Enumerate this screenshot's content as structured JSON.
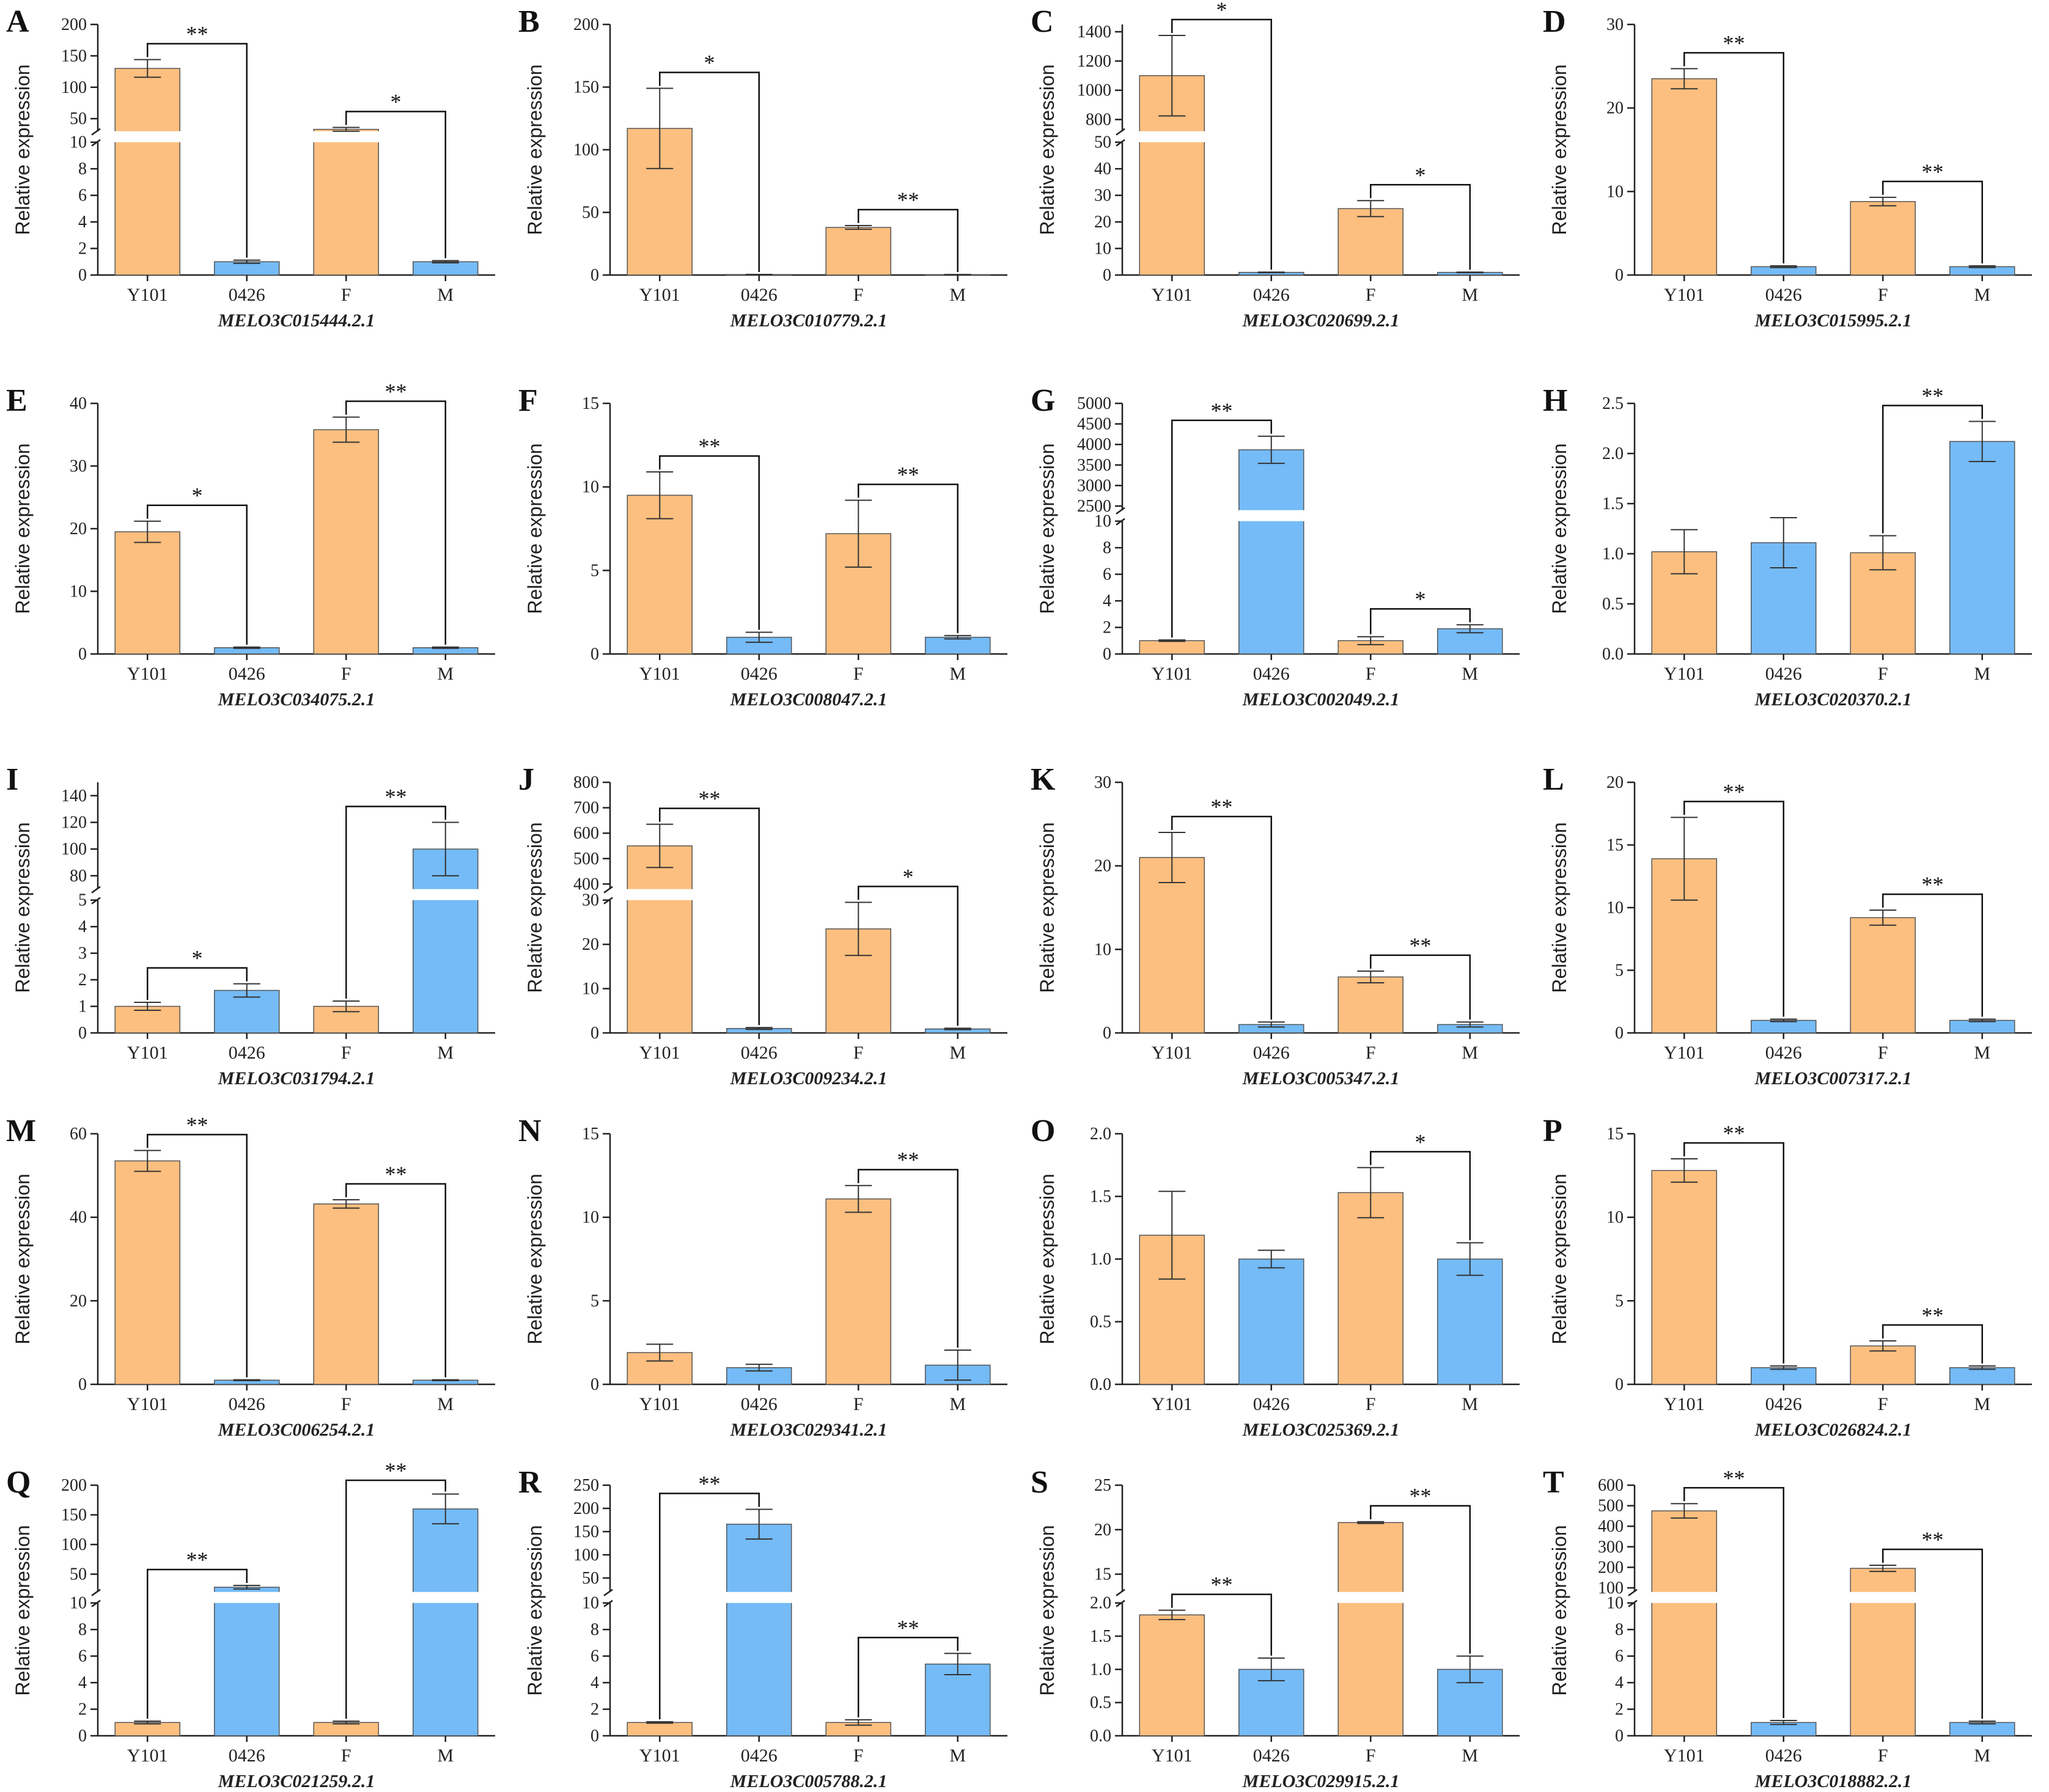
{
  "colors": {
    "orange": "#FDBF7F",
    "blue": "#74BBF7",
    "outline": "#555555",
    "axis": "#222222"
  },
  "chart_data": [
    {
      "type": "bar",
      "letter": "A",
      "gene": "MELO3C015444.2.1",
      "ylabel": "Relative expression",
      "categories": [
        "Y101",
        "0426",
        "F",
        "M"
      ],
      "values": [
        130,
        1.0,
        33,
        1.0
      ],
      "errors": [
        14,
        0.12,
        3,
        0.08
      ],
      "axis": {
        "broken": true,
        "low_max": 10,
        "low_ticks": [
          "0",
          "2",
          "4",
          "6",
          "8",
          "10"
        ],
        "high_min": 30,
        "high_max": 200,
        "high_ticks": [
          "50",
          "100",
          "150",
          "200"
        ]
      },
      "sig": [
        {
          "from": 0,
          "to": 1,
          "label": "**"
        },
        {
          "from": 2,
          "to": 3,
          "label": "*"
        }
      ]
    },
    {
      "type": "bar",
      "letter": "B",
      "gene": "MELO3C010779.2.1",
      "ylabel": "Relative expression",
      "categories": [
        "Y101",
        "0426",
        "F",
        "M"
      ],
      "values": [
        117,
        0.4,
        38,
        0.3
      ],
      "errors": [
        32,
        0.1,
        1.5,
        0.1
      ],
      "axis": {
        "broken": false,
        "max": 200,
        "ticks": [
          "0",
          "50",
          "100",
          "150",
          "200"
        ]
      },
      "sig": [
        {
          "from": 0,
          "to": 1,
          "label": "*"
        },
        {
          "from": 2,
          "to": 3,
          "label": "**"
        }
      ]
    },
    {
      "type": "bar",
      "letter": "C",
      "gene": "MELO3C020699.2.1",
      "ylabel": "Relative expression",
      "categories": [
        "Y101",
        "0426",
        "F",
        "M"
      ],
      "values": [
        1100,
        1.0,
        25,
        1.0
      ],
      "errors": [
        275,
        0.1,
        3,
        0.1
      ],
      "axis": {
        "broken": true,
        "low_max": 50,
        "low_ticks": [
          "0",
          "10",
          "20",
          "30",
          "40",
          "50"
        ],
        "high_min": 720,
        "high_max": 1450,
        "high_ticks": [
          "800",
          "1000",
          "1200",
          "1400"
        ]
      },
      "sig": [
        {
          "from": 0,
          "to": 1,
          "label": "*"
        },
        {
          "from": 2,
          "to": 3,
          "label": "*"
        }
      ]
    },
    {
      "type": "bar",
      "letter": "D",
      "gene": "MELO3C015995.2.1",
      "ylabel": "Relative expression",
      "categories": [
        "Y101",
        "0426",
        "F",
        "M"
      ],
      "values": [
        23.5,
        1.0,
        8.8,
        1.0
      ],
      "errors": [
        1.2,
        0.1,
        0.5,
        0.1
      ],
      "axis": {
        "broken": false,
        "max": 30,
        "ticks": [
          "0",
          "10",
          "20",
          "30"
        ]
      },
      "sig": [
        {
          "from": 0,
          "to": 1,
          "label": "**"
        },
        {
          "from": 2,
          "to": 3,
          "label": "**"
        }
      ]
    },
    {
      "type": "bar",
      "letter": "E",
      "gene": "MELO3C034075.2.1",
      "ylabel": "Relative expression",
      "categories": [
        "Y101",
        "0426",
        "F",
        "M"
      ],
      "values": [
        19.5,
        1.0,
        35.8,
        1.0
      ],
      "errors": [
        1.7,
        0.1,
        2.0,
        0.1
      ],
      "axis": {
        "broken": false,
        "max": 40,
        "ticks": [
          "0",
          "10",
          "20",
          "30",
          "40"
        ]
      },
      "sig": [
        {
          "from": 0,
          "to": 1,
          "label": "*"
        },
        {
          "from": 2,
          "to": 3,
          "label": "**"
        }
      ]
    },
    {
      "type": "bar",
      "letter": "F",
      "gene": "MELO3C008047.2.1",
      "ylabel": "Relative expression",
      "categories": [
        "Y101",
        "0426",
        "F",
        "M"
      ],
      "values": [
        9.5,
        1.0,
        7.2,
        1.0
      ],
      "errors": [
        1.4,
        0.3,
        2.0,
        0.1
      ],
      "axis": {
        "broken": false,
        "max": 15,
        "ticks": [
          "0",
          "5",
          "10",
          "15"
        ]
      },
      "sig": [
        {
          "from": 0,
          "to": 1,
          "label": "**"
        },
        {
          "from": 2,
          "to": 3,
          "label": "**"
        }
      ]
    },
    {
      "type": "bar",
      "letter": "G",
      "gene": "MELO3C002049.2.1",
      "ylabel": "Relative expression",
      "categories": [
        "Y101",
        "0426",
        "F",
        "M"
      ],
      "values": [
        1.0,
        3870,
        1.0,
        1.9
      ],
      "errors": [
        0.05,
        330,
        0.3,
        0.3
      ],
      "axis": {
        "broken": true,
        "low_max": 10,
        "low_ticks": [
          "0",
          "2",
          "4",
          "6",
          "8",
          "10"
        ],
        "high_min": 2400,
        "high_max": 5000,
        "high_ticks": [
          "2500",
          "3000",
          "3500",
          "4000",
          "4500",
          "5000"
        ]
      },
      "sig": [
        {
          "from": 0,
          "to": 1,
          "label": "**"
        },
        {
          "from": 2,
          "to": 3,
          "label": "*"
        }
      ]
    },
    {
      "type": "bar",
      "letter": "H",
      "gene": "MELO3C020370.2.1",
      "ylabel": "Relative expression",
      "categories": [
        "Y101",
        "0426",
        "F",
        "M"
      ],
      "values": [
        1.02,
        1.11,
        1.01,
        2.12
      ],
      "errors": [
        0.22,
        0.25,
        0.17,
        0.2
      ],
      "axis": {
        "broken": false,
        "max": 2.5,
        "ticks": [
          "0.0",
          "0.5",
          "1.0",
          "1.5",
          "2.0",
          "2.5"
        ]
      },
      "sig": [
        {
          "from": 2,
          "to": 3,
          "label": "**"
        }
      ]
    },
    {
      "type": "bar",
      "letter": "I",
      "gene": "MELO3C031794.2.1",
      "ylabel": "Relative expression",
      "categories": [
        "Y101",
        "0426",
        "F",
        "M"
      ],
      "values": [
        1.0,
        1.6,
        1.0,
        100
      ],
      "errors": [
        0.15,
        0.25,
        0.2,
        20
      ],
      "axis": {
        "broken": true,
        "low_max": 5,
        "low_ticks": [
          "0",
          "1",
          "2",
          "3",
          "4",
          "5"
        ],
        "high_min": 70,
        "high_max": 150,
        "high_ticks": [
          "80",
          "100",
          "120",
          "140"
        ]
      },
      "sig": [
        {
          "from": 0,
          "to": 1,
          "label": "*"
        },
        {
          "from": 2,
          "to": 3,
          "label": "**"
        }
      ]
    },
    {
      "type": "bar",
      "letter": "J",
      "gene": "MELO3C009234.2.1",
      "ylabel": "Relative expression",
      "categories": [
        "Y101",
        "0426",
        "F",
        "M"
      ],
      "values": [
        550,
        1.0,
        23.5,
        0.9
      ],
      "errors": [
        85,
        0.2,
        6,
        0.15
      ],
      "axis": {
        "broken": true,
        "low_max": 30,
        "low_ticks": [
          "0",
          "10",
          "20",
          "30"
        ],
        "high_min": 380,
        "high_max": 800,
        "high_ticks": [
          "400",
          "500",
          "600",
          "700",
          "800"
        ]
      },
      "sig": [
        {
          "from": 0,
          "to": 1,
          "label": "**"
        },
        {
          "from": 2,
          "to": 3,
          "label": "*"
        }
      ]
    },
    {
      "type": "bar",
      "letter": "K",
      "gene": "MELO3C005347.2.1",
      "ylabel": "Relative expression",
      "categories": [
        "Y101",
        "0426",
        "F",
        "M"
      ],
      "values": [
        21,
        1.0,
        6.7,
        1.0
      ],
      "errors": [
        3,
        0.3,
        0.7,
        0.3
      ],
      "axis": {
        "broken": false,
        "max": 30,
        "ticks": [
          "0",
          "10",
          "20",
          "30"
        ]
      },
      "sig": [
        {
          "from": 0,
          "to": 1,
          "label": "**"
        },
        {
          "from": 2,
          "to": 3,
          "label": "**"
        }
      ]
    },
    {
      "type": "bar",
      "letter": "L",
      "gene": "MELO3C007317.2.1",
      "ylabel": "Relative expression",
      "categories": [
        "Y101",
        "0426",
        "F",
        "M"
      ],
      "values": [
        13.9,
        1.0,
        9.2,
        1.0
      ],
      "errors": [
        3.3,
        0.1,
        0.6,
        0.1
      ],
      "axis": {
        "broken": false,
        "max": 20,
        "ticks": [
          "0",
          "5",
          "10",
          "15",
          "20"
        ]
      },
      "sig": [
        {
          "from": 0,
          "to": 1,
          "label": "**"
        },
        {
          "from": 2,
          "to": 3,
          "label": "**"
        }
      ]
    },
    {
      "type": "bar",
      "letter": "M",
      "gene": "MELO3C006254.2.1",
      "ylabel": "Relative expression",
      "categories": [
        "Y101",
        "0426",
        "F",
        "M"
      ],
      "values": [
        53.5,
        1.0,
        43.2,
        1.0
      ],
      "errors": [
        2.5,
        0.1,
        1.0,
        0.1
      ],
      "axis": {
        "broken": false,
        "max": 60,
        "ticks": [
          "0",
          "20",
          "40",
          "60"
        ]
      },
      "sig": [
        {
          "from": 0,
          "to": 1,
          "label": "**"
        },
        {
          "from": 2,
          "to": 3,
          "label": "**"
        }
      ]
    },
    {
      "type": "bar",
      "letter": "N",
      "gene": "MELO3C029341.2.1",
      "ylabel": "Relative expression",
      "categories": [
        "Y101",
        "0426",
        "F",
        "M"
      ],
      "values": [
        1.9,
        1.0,
        11.1,
        1.15
      ],
      "errors": [
        0.5,
        0.2,
        0.8,
        0.9
      ],
      "axis": {
        "broken": false,
        "max": 15,
        "ticks": [
          "0",
          "5",
          "10",
          "15"
        ]
      },
      "sig": [
        {
          "from": 2,
          "to": 3,
          "label": "**"
        }
      ]
    },
    {
      "type": "bar",
      "letter": "O",
      "gene": "MELO3C025369.2.1",
      "ylabel": "Relative expression",
      "categories": [
        "Y101",
        "0426",
        "F",
        "M"
      ],
      "values": [
        1.19,
        1.0,
        1.53,
        1.0
      ],
      "errors": [
        0.35,
        0.07,
        0.2,
        0.13
      ],
      "axis": {
        "broken": false,
        "max": 2.0,
        "ticks": [
          "0.0",
          "0.5",
          "1.0",
          "1.5",
          "2.0"
        ]
      },
      "sig": [
        {
          "from": 2,
          "to": 3,
          "label": "*"
        }
      ]
    },
    {
      "type": "bar",
      "letter": "P",
      "gene": "MELO3C026824.2.1",
      "ylabel": "Relative expression",
      "categories": [
        "Y101",
        "0426",
        "F",
        "M"
      ],
      "values": [
        12.8,
        1.0,
        2.3,
        1.0
      ],
      "errors": [
        0.7,
        0.1,
        0.3,
        0.1
      ],
      "axis": {
        "broken": false,
        "max": 15,
        "ticks": [
          "0",
          "5",
          "10",
          "15"
        ]
      },
      "sig": [
        {
          "from": 0,
          "to": 1,
          "label": "**"
        },
        {
          "from": 2,
          "to": 3,
          "label": "**"
        }
      ]
    },
    {
      "type": "bar",
      "letter": "Q",
      "gene": "MELO3C021259.2.1",
      "ylabel": "Relative expression",
      "categories": [
        "Y101",
        "0426",
        "F",
        "M"
      ],
      "values": [
        1.0,
        28,
        1.0,
        160
      ],
      "errors": [
        0.1,
        3,
        0.1,
        25
      ],
      "axis": {
        "broken": true,
        "low_max": 10,
        "low_ticks": [
          "0",
          "2",
          "4",
          "6",
          "8",
          "10"
        ],
        "high_min": 20,
        "high_max": 200,
        "high_ticks": [
          "50",
          "100",
          "150",
          "200"
        ]
      },
      "sig": [
        {
          "from": 0,
          "to": 1,
          "label": "**"
        },
        {
          "from": 2,
          "to": 3,
          "label": "**"
        }
      ]
    },
    {
      "type": "bar",
      "letter": "R",
      "gene": "MELO3C005788.2.1",
      "ylabel": "Relative expression",
      "categories": [
        "Y101",
        "0426",
        "F",
        "M"
      ],
      "values": [
        1.0,
        166,
        1.0,
        5.4
      ],
      "errors": [
        0.05,
        32,
        0.2,
        0.8
      ],
      "axis": {
        "broken": true,
        "low_max": 10,
        "low_ticks": [
          "0",
          "2",
          "4",
          "6",
          "8",
          "10"
        ],
        "high_min": 20,
        "high_max": 250,
        "high_ticks": [
          "50",
          "100",
          "150",
          "200",
          "250"
        ]
      },
      "sig": [
        {
          "from": 0,
          "to": 1,
          "label": "**"
        },
        {
          "from": 2,
          "to": 3,
          "label": "**"
        }
      ]
    },
    {
      "type": "bar",
      "letter": "S",
      "gene": "MELO3C029915.2.1",
      "ylabel": "Relative expression",
      "categories": [
        "Y101",
        "0426",
        "F",
        "M"
      ],
      "values": [
        1.82,
        1.0,
        20.8,
        1.0
      ],
      "errors": [
        0.07,
        0.17,
        0.1,
        0.2
      ],
      "axis": {
        "broken": true,
        "low_max": 2.0,
        "low_ticks": [
          "0.0",
          "0.5",
          "1.0",
          "1.5",
          "2.0"
        ],
        "high_min": 13,
        "high_max": 25,
        "high_ticks": [
          "15",
          "20",
          "25"
        ]
      },
      "sig": [
        {
          "from": 0,
          "to": 1,
          "label": "**"
        },
        {
          "from": 2,
          "to": 3,
          "label": "**"
        }
      ]
    },
    {
      "type": "bar",
      "letter": "T",
      "gene": "MELO3C018882.2.1",
      "ylabel": "Relative expression",
      "categories": [
        "Y101",
        "0426",
        "F",
        "M"
      ],
      "values": [
        475,
        1.0,
        195,
        1.0
      ],
      "errors": [
        35,
        0.15,
        15,
        0.1
      ],
      "axis": {
        "broken": true,
        "low_max": 10,
        "low_ticks": [
          "0",
          "2",
          "4",
          "6",
          "8",
          "10"
        ],
        "high_min": 80,
        "high_max": 600,
        "high_ticks": [
          "100",
          "200",
          "300",
          "400",
          "500",
          "600"
        ]
      },
      "sig": [
        {
          "from": 0,
          "to": 1,
          "label": "**"
        },
        {
          "from": 2,
          "to": 3,
          "label": "**"
        }
      ]
    }
  ]
}
